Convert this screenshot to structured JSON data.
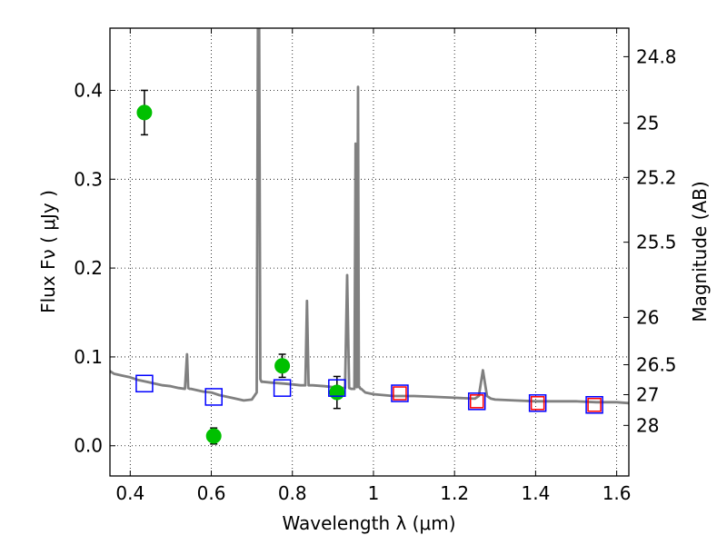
{
  "chart_data": {
    "type": "scatter",
    "title": "",
    "xlabel": "Wavelength  λ (μm)",
    "ylabel": "Flux  Fν  ( μJy )",
    "ylabel_right": "Magnitude (AB)",
    "xlim": [
      0.35,
      1.63
    ],
    "ylim": [
      -0.034,
      0.47
    ],
    "grid": true,
    "x_ticks": [
      0.4,
      0.6,
      0.8,
      1.0,
      1.2,
      1.4,
      1.6
    ],
    "x_tick_labels": [
      "0.4",
      "0.6",
      "0.8",
      "1",
      "1.2",
      "1.4",
      "1.6"
    ],
    "y_ticks": [
      0.0,
      0.1,
      0.2,
      0.3,
      0.4
    ],
    "y_tick_labels": [
      "0.0",
      "0.1",
      "0.2",
      "0.3",
      "0.4"
    ],
    "right_axis_ticks": [
      {
        "label": "24.8",
        "flux": 0.4379
      },
      {
        "label": "25",
        "flux": 0.3631
      },
      {
        "label": "25.2",
        "flux": 0.302
      },
      {
        "label": "25.5",
        "flux": 0.2291
      },
      {
        "label": "26",
        "flux": 0.1445
      },
      {
        "label": "26.5",
        "flux": 0.0912
      },
      {
        "label": "27",
        "flux": 0.0575
      },
      {
        "label": "28",
        "flux": 0.0229
      }
    ],
    "series": [
      {
        "kind": "line",
        "color": "#808080",
        "x": [
          0.35,
          0.36,
          0.38,
          0.4,
          0.42,
          0.44,
          0.46,
          0.48,
          0.5,
          0.52,
          0.535,
          0.54,
          0.543,
          0.547,
          0.55,
          0.58,
          0.6,
          0.62,
          0.65,
          0.68,
          0.7,
          0.712,
          0.715,
          0.718,
          0.721,
          0.724,
          0.728,
          0.75,
          0.78,
          0.8,
          0.82,
          0.832,
          0.836,
          0.84,
          0.85,
          0.88,
          0.9,
          0.92,
          0.93,
          0.935,
          0.94,
          0.945,
          0.95,
          0.953,
          0.956,
          0.959,
          0.962,
          0.964,
          0.966,
          0.968,
          0.97,
          0.975,
          0.98,
          1.0,
          1.05,
          1.1,
          1.15,
          1.2,
          1.25,
          1.26,
          1.27,
          1.28,
          1.29,
          1.3,
          1.35,
          1.4,
          1.45,
          1.5,
          1.55,
          1.6,
          1.63
        ],
        "y": [
          0.084,
          0.081,
          0.079,
          0.077,
          0.074,
          0.072,
          0.07,
          0.068,
          0.067,
          0.065,
          0.064,
          0.103,
          0.065,
          0.064,
          0.064,
          0.061,
          0.06,
          0.057,
          0.054,
          0.051,
          0.052,
          0.06,
          0.47,
          0.47,
          0.075,
          0.072,
          0.072,
          0.071,
          0.07,
          0.069,
          0.068,
          0.068,
          0.163,
          0.068,
          0.068,
          0.067,
          0.066,
          0.065,
          0.065,
          0.192,
          0.065,
          0.064,
          0.064,
          0.064,
          0.34,
          0.066,
          0.404,
          0.066,
          0.066,
          0.064,
          0.064,
          0.062,
          0.06,
          0.058,
          0.056,
          0.056,
          0.055,
          0.054,
          0.053,
          0.056,
          0.085,
          0.056,
          0.053,
          0.052,
          0.051,
          0.05,
          0.05,
          0.05,
          0.049,
          0.049,
          0.048
        ]
      },
      {
        "kind": "points",
        "marker": "circle",
        "color": "#00c000",
        "points": [
          {
            "x": 0.435,
            "y": 0.375,
            "err": 0.025
          },
          {
            "x": 0.606,
            "y": 0.011,
            "err": 0.009
          },
          {
            "x": 0.775,
            "y": 0.09,
            "err": 0.013
          },
          {
            "x": 0.91,
            "y": 0.06,
            "err": 0.018
          }
        ]
      },
      {
        "kind": "points",
        "marker": "square",
        "color": "#0000ff",
        "points": [
          {
            "x": 0.435,
            "y": 0.07
          },
          {
            "x": 0.606,
            "y": 0.055
          },
          {
            "x": 0.775,
            "y": 0.065
          },
          {
            "x": 0.91,
            "y": 0.065
          },
          {
            "x": 1.065,
            "y": 0.059
          },
          {
            "x": 1.255,
            "y": 0.05
          },
          {
            "x": 1.405,
            "y": 0.048
          },
          {
            "x": 1.545,
            "y": 0.046
          }
        ]
      },
      {
        "kind": "points",
        "marker": "square",
        "color": "#ff0000",
        "points": [
          {
            "x": 1.065,
            "y": 0.059
          },
          {
            "x": 1.255,
            "y": 0.05
          },
          {
            "x": 1.405,
            "y": 0.048
          },
          {
            "x": 1.545,
            "y": 0.046
          }
        ]
      }
    ]
  }
}
